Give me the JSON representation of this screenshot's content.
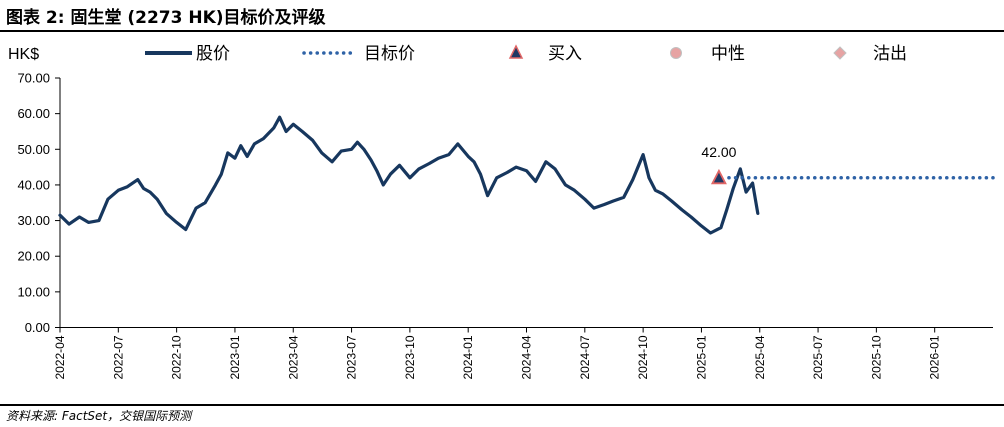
{
  "header": {
    "title": "图表 2: 固生堂 (2273 HK)目标价及评级"
  },
  "footer": {
    "source": "资料来源: FactSet，交银国际预测"
  },
  "colors": {
    "price_line": "#17375E",
    "target_line": "#2E62A6",
    "buy_marker_fill": "#1F3864",
    "buy_marker_stroke": "#E06666",
    "neutral_marker": "#E6A3A3",
    "sell_marker": "#E6A3A3",
    "axis": "#000000"
  },
  "chart_data": {
    "type": "line",
    "unit_label": "HK$",
    "legend": [
      {
        "label": "股价",
        "style": "solid-line",
        "icon": "solid-line-icon"
      },
      {
        "label": "目标价",
        "style": "dotted-line",
        "icon": "dotted-line-icon"
      },
      {
        "label": "买入",
        "style": "triangle-marker",
        "icon": "triangle-icon"
      },
      {
        "label": "中性",
        "style": "circle-marker",
        "icon": "circle-icon"
      },
      {
        "label": "沽出",
        "style": "diamond-marker",
        "icon": "diamond-icon"
      }
    ],
    "legend_position": "top",
    "ylim": [
      0,
      70
    ],
    "yticks": [
      "0.00",
      "10.00",
      "20.00",
      "30.00",
      "40.00",
      "50.00",
      "60.00",
      "70.00"
    ],
    "xlim": [
      "2022-04",
      "2026-04"
    ],
    "xticks": [
      "2022-04",
      "2022-07",
      "2022-10",
      "2023-01",
      "2023-04",
      "2023-07",
      "2023-10",
      "2024-01",
      "2024-04",
      "2024-07",
      "2024-10",
      "2025-01",
      "2025-04",
      "2025-07",
      "2025-10",
      "2026-01"
    ],
    "grid": false,
    "series": [
      {
        "name": "股价",
        "points": [
          [
            "2022-04",
            31.5
          ],
          [
            "2022-04-15",
            29.0
          ],
          [
            "2022-05",
            31.0
          ],
          [
            "2022-05-15",
            29.5
          ],
          [
            "2022-06",
            30.0
          ],
          [
            "2022-06-15",
            36.0
          ],
          [
            "2022-07",
            38.5
          ],
          [
            "2022-07-15",
            39.5
          ],
          [
            "2022-08",
            41.5
          ],
          [
            "2022-08-10",
            39.0
          ],
          [
            "2022-08-20",
            38.0
          ],
          [
            "2022-09",
            36.0
          ],
          [
            "2022-09-15",
            32.0
          ],
          [
            "2022-10",
            29.5
          ],
          [
            "2022-10-15",
            27.5
          ],
          [
            "2022-11",
            33.5
          ],
          [
            "2022-11-15",
            35.0
          ],
          [
            "2022-12",
            40.0
          ],
          [
            "2022-12-10",
            43.0
          ],
          [
            "2022-12-20",
            49.0
          ],
          [
            "2023-01",
            47.5
          ],
          [
            "2023-01-10",
            51.0
          ],
          [
            "2023-01-20",
            48.0
          ],
          [
            "2023-02",
            51.5
          ],
          [
            "2023-02-15",
            53.0
          ],
          [
            "2023-03",
            56.0
          ],
          [
            "2023-03-10",
            59.0
          ],
          [
            "2023-03-20",
            55.0
          ],
          [
            "2023-04",
            57.0
          ],
          [
            "2023-04-15",
            55.0
          ],
          [
            "2023-05",
            52.5
          ],
          [
            "2023-05-15",
            49.0
          ],
          [
            "2023-06",
            46.5
          ],
          [
            "2023-06-15",
            49.5
          ],
          [
            "2023-07",
            50.0
          ],
          [
            "2023-07-10",
            52.0
          ],
          [
            "2023-07-20",
            50.0
          ],
          [
            "2023-08",
            47.0
          ],
          [
            "2023-08-10",
            44.0
          ],
          [
            "2023-08-20",
            40.0
          ],
          [
            "2023-09",
            43.0
          ],
          [
            "2023-09-15",
            45.5
          ],
          [
            "2023-10",
            42.0
          ],
          [
            "2023-10-15",
            44.5
          ],
          [
            "2023-11",
            46.0
          ],
          [
            "2023-11-15",
            47.5
          ],
          [
            "2023-12",
            48.5
          ],
          [
            "2023-12-15",
            51.5
          ],
          [
            "2024-01",
            48.0
          ],
          [
            "2024-01-10",
            46.5
          ],
          [
            "2024-01-20",
            43.0
          ],
          [
            "2024-02",
            37.0
          ],
          [
            "2024-02-15",
            42.0
          ],
          [
            "2024-03",
            43.5
          ],
          [
            "2024-03-15",
            45.0
          ],
          [
            "2024-04",
            44.0
          ],
          [
            "2024-04-15",
            41.0
          ],
          [
            "2024-05",
            46.5
          ],
          [
            "2024-05-15",
            44.5
          ],
          [
            "2024-06",
            40.0
          ],
          [
            "2024-06-15",
            38.5
          ],
          [
            "2024-07",
            36.0
          ],
          [
            "2024-07-15",
            33.5
          ],
          [
            "2024-08",
            34.5
          ],
          [
            "2024-08-15",
            35.5
          ],
          [
            "2024-09",
            36.5
          ],
          [
            "2024-09-15",
            41.5
          ],
          [
            "2024-10",
            48.5
          ],
          [
            "2024-10-10",
            42.0
          ],
          [
            "2024-10-20",
            38.5
          ],
          [
            "2024-11",
            37.5
          ],
          [
            "2024-11-15",
            35.5
          ],
          [
            "2024-12",
            33.0
          ],
          [
            "2024-12-15",
            31.0
          ],
          [
            "2025-01",
            28.5
          ],
          [
            "2025-01-15",
            26.5
          ],
          [
            "2025-02",
            28.0
          ],
          [
            "2025-02-10",
            33.0
          ],
          [
            "2025-02-20",
            39.0
          ],
          [
            "2025-03",
            44.5
          ],
          [
            "2025-03-10",
            38.0
          ],
          [
            "2025-03-20",
            40.5
          ],
          [
            "2025-03-28",
            32.0
          ]
        ]
      },
      {
        "name": "目标价",
        "points": [
          [
            "2025-01-28",
            42.0
          ],
          [
            "2026-04",
            42.0
          ]
        ]
      }
    ],
    "markers": [
      {
        "type": "buy",
        "date": "2025-01-28",
        "value": 42.0,
        "label": "42.00"
      }
    ]
  }
}
